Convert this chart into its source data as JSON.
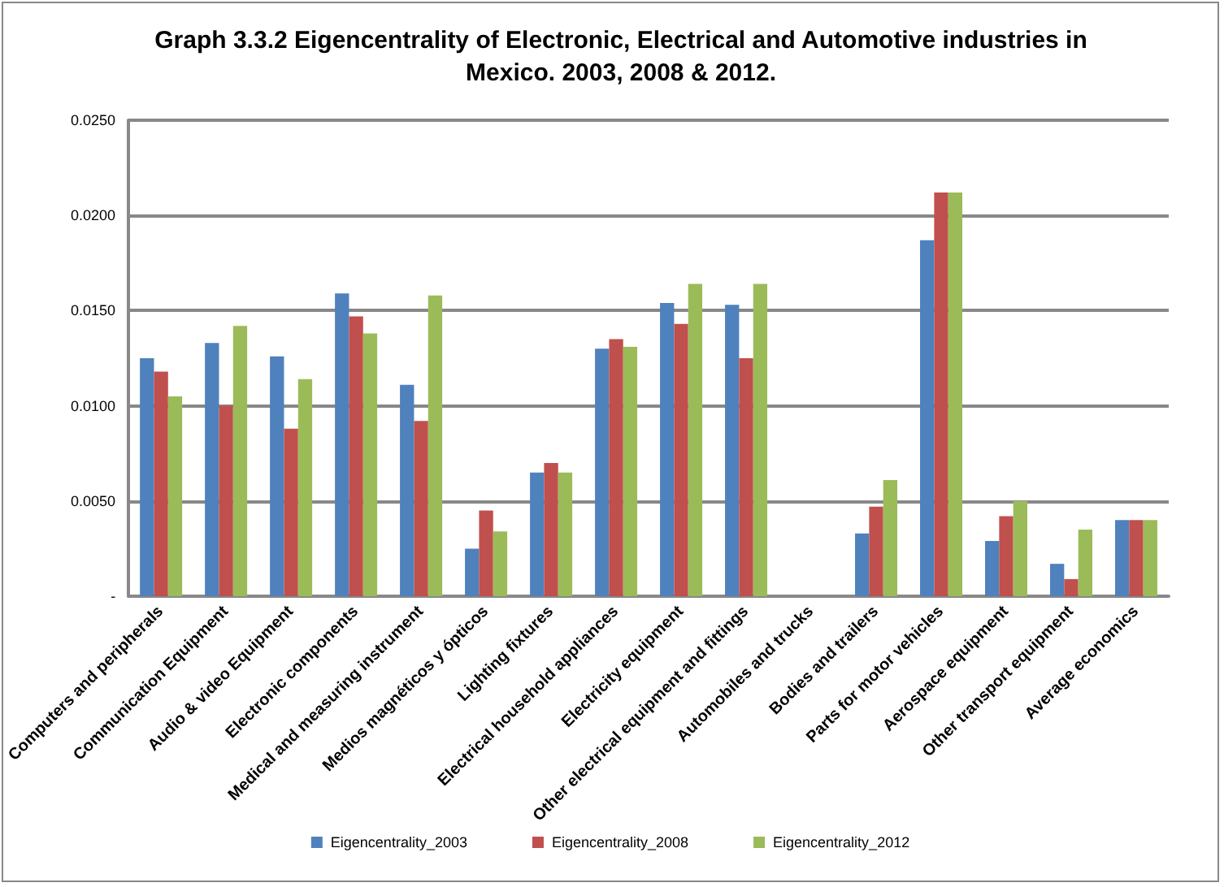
{
  "chart_data": {
    "type": "bar",
    "title": "Graph 3.3.2 Eigencentrality of Electronic, Electrical and Automotive industries in Mexico. 2003, 2008 & 2012.",
    "categories": [
      "Computers and peripherals",
      "Communication Equipment",
      "Audio & video Equipment",
      "Electronic components",
      "Medical and measuring instrument",
      "Medios magnéticos y ópticos",
      "Lighting fixtures",
      "Electrical household appliances",
      "Electricity equipment",
      "Other electrical equipment and fittings",
      "Automobiles and trucks",
      "Bodies and trailers",
      "Parts for motor vehicles",
      "Aerospace equipment",
      "Other transport equipment",
      "Average economics"
    ],
    "series": [
      {
        "name": "Eigencentrality_2003",
        "color": "#4f81bd",
        "values": [
          0.0125,
          0.0133,
          0.0126,
          0.0159,
          0.0111,
          0.0025,
          0.0065,
          0.013,
          0.0154,
          0.0153,
          null,
          0.0033,
          0.0187,
          0.0029,
          0.0017,
          0.004
        ]
      },
      {
        "name": "Eigencentrality_2008",
        "color": "#c0504d",
        "values": [
          0.0118,
          0.01,
          0.0088,
          0.0147,
          0.0092,
          0.0045,
          0.007,
          0.0135,
          0.0143,
          0.0125,
          null,
          0.0047,
          0.0212,
          0.0042,
          0.0009,
          0.004
        ]
      },
      {
        "name": "Eigencentrality_2012",
        "color": "#9bbb59",
        "values": [
          0.0105,
          0.0142,
          0.0114,
          0.0138,
          0.0158,
          0.0034,
          0.0065,
          0.0131,
          0.0164,
          0.0164,
          null,
          0.0061,
          0.0212,
          0.005,
          0.0035,
          0.004
        ]
      }
    ],
    "ylim": [
      0,
      0.025
    ],
    "yticks": [
      {
        "value": 0,
        "label": "-"
      },
      {
        "value": 0.005,
        "label": "0.0050"
      },
      {
        "value": 0.01,
        "label": "0.0100"
      },
      {
        "value": 0.015,
        "label": "0.0150"
      },
      {
        "value": 0.02,
        "label": "0.0200"
      },
      {
        "value": 0.025,
        "label": "0.0250"
      }
    ],
    "grid": "y",
    "legend": "bottom"
  }
}
